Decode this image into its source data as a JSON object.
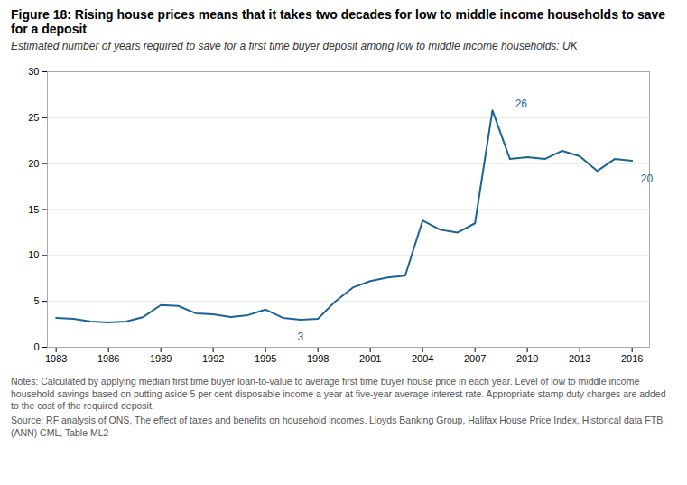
{
  "chart_data": {
    "type": "line",
    "title": "Figure 18:  Rising house prices means that it takes two decades for low to middle income households to save for a deposit",
    "subtitle": "Estimated number of years required to save for a first time buyer deposit among low to middle income households: UK",
    "notes": "Notes: Calculated by applying median first time buyer loan-to-value to average first time buyer house price in each year. Level of low to middle income household savings based on putting aside 5 per cent disposable income a year at five-year average interest rate. Appropriate stamp duty charges are added to the cost of the required deposit.",
    "source": "Source: RF analysis of ONS, The effect of taxes and benefits on household incomes. Lloyds Banking Group, Halifax House Price Index, Historical data FTB (ANN) CML, Table ML2",
    "x": [
      1983,
      1984,
      1985,
      1986,
      1987,
      1988,
      1989,
      1990,
      1991,
      1992,
      1993,
      1994,
      1995,
      1996,
      1997,
      1998,
      1999,
      2000,
      2001,
      2002,
      2003,
      2004,
      2005,
      2006,
      2007,
      2008,
      2009,
      2010,
      2011,
      2012,
      2013,
      2014,
      2015,
      2016
    ],
    "values": [
      3.2,
      3.1,
      2.8,
      2.7,
      2.8,
      3.3,
      4.6,
      4.5,
      3.7,
      3.6,
      3.3,
      3.5,
      4.1,
      3.2,
      3.0,
      3.1,
      5.0,
      6.5,
      7.2,
      7.6,
      7.8,
      13.8,
      12.8,
      12.5,
      13.5,
      25.8,
      20.5,
      20.7,
      20.5,
      21.4,
      20.8,
      19.2,
      20.5,
      20.3
    ],
    "color": "#1a6496",
    "xlim": [
      1982.5,
      2017
    ],
    "xticks": [
      1983,
      1986,
      1989,
      1992,
      1995,
      1998,
      2001,
      2004,
      2007,
      2010,
      2013,
      2016
    ],
    "ylim": [
      0,
      30
    ],
    "yticks": [
      0,
      5,
      10,
      15,
      20,
      25,
      30
    ],
    "grid": true,
    "annotations": [
      {
        "text": "26",
        "x": 2009.3,
        "y": 26.1
      },
      {
        "text": "3",
        "x": 1997,
        "y": 1.6
      },
      {
        "text": "20",
        "x": 2016.5,
        "y": 18.8
      }
    ]
  }
}
